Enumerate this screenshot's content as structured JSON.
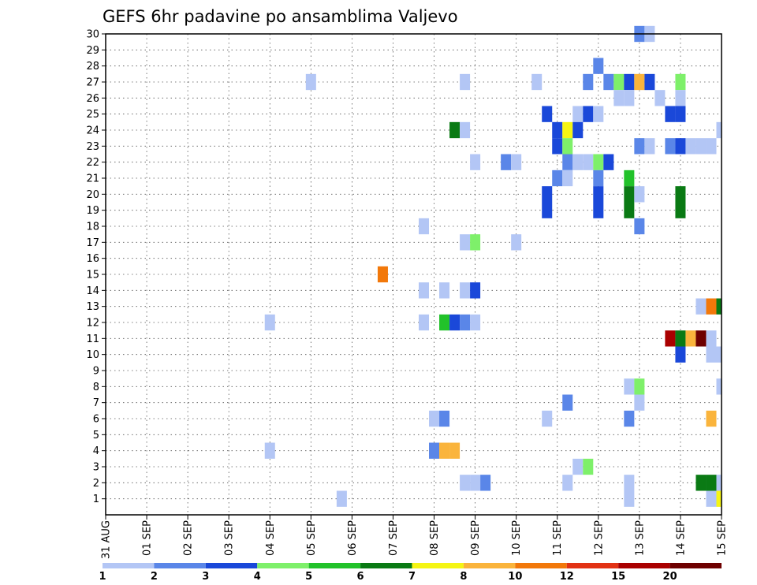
{
  "chart_data": {
    "type": "heatmap",
    "title": "GEFS 6hr padavine po ansamblima Valjevo",
    "x_tick_labels": [
      "31 AUG",
      "01 SEP",
      "02 SEP",
      "03 SEP",
      "04 SEP",
      "05 SEP",
      "06 SEP",
      "07 SEP",
      "08 SEP",
      "09 SEP",
      "10 SEP",
      "11 SEP",
      "12 SEP",
      "13 SEP",
      "14 SEP",
      "15 SEP"
    ],
    "y_tick_labels": [
      "1",
      "2",
      "3",
      "4",
      "5",
      "6",
      "7",
      "8",
      "9",
      "10",
      "11",
      "12",
      "13",
      "14",
      "15",
      "16",
      "17",
      "18",
      "19",
      "20",
      "21",
      "22",
      "23",
      "24",
      "25",
      "26",
      "27",
      "28",
      "29",
      "30"
    ],
    "x_range_days": [
      0,
      15
    ],
    "y_range": [
      0,
      30
    ],
    "grid": true,
    "colorbar": {
      "labels": [
        "1",
        "2",
        "3",
        "4",
        "5",
        "6",
        "7",
        "8",
        "10",
        "12",
        "15",
        "20"
      ],
      "colors": [
        "#b3c6f5",
        "#5a86e8",
        "#1a48d9",
        "#7ef06a",
        "#22c22a",
        "#0a7a14",
        "#f5f514",
        "#fab43c",
        "#f2780a",
        "#e23214",
        "#aa0000",
        "#6e0000"
      ]
    },
    "note_points": "Each cell: ensemble member (y), forecast time in days after 31 AUG 00z (x, 6-hour steps), precipitation in mm (v).",
    "points": [
      {
        "x": 13.0,
        "y": 30,
        "v": 2
      },
      {
        "x": 13.25,
        "y": 30,
        "v": 1
      },
      {
        "x": 12.0,
        "y": 28,
        "v": 2
      },
      {
        "x": 5.0,
        "y": 27,
        "v": 1
      },
      {
        "x": 8.75,
        "y": 27,
        "v": 1
      },
      {
        "x": 10.5,
        "y": 27,
        "v": 1
      },
      {
        "x": 11.75,
        "y": 27,
        "v": 2
      },
      {
        "x": 12.25,
        "y": 27,
        "v": 2
      },
      {
        "x": 12.5,
        "y": 27,
        "v": 4
      },
      {
        "x": 12.75,
        "y": 27,
        "v": 3
      },
      {
        "x": 13.0,
        "y": 27,
        "v": 8
      },
      {
        "x": 13.25,
        "y": 27,
        "v": 3
      },
      {
        "x": 14.0,
        "y": 27,
        "v": 4
      },
      {
        "x": 12.5,
        "y": 26,
        "v": 1
      },
      {
        "x": 12.75,
        "y": 26,
        "v": 1
      },
      {
        "x": 13.5,
        "y": 26,
        "v": 1
      },
      {
        "x": 14.0,
        "y": 26,
        "v": 1
      },
      {
        "x": 10.75,
        "y": 25,
        "v": 3
      },
      {
        "x": 11.5,
        "y": 25,
        "v": 1
      },
      {
        "x": 11.75,
        "y": 25,
        "v": 3
      },
      {
        "x": 12.0,
        "y": 25,
        "v": 1
      },
      {
        "x": 13.75,
        "y": 25,
        "v": 3
      },
      {
        "x": 14.0,
        "y": 25,
        "v": 3
      },
      {
        "x": 8.5,
        "y": 24,
        "v": 6
      },
      {
        "x": 8.75,
        "y": 24,
        "v": 1
      },
      {
        "x": 11.0,
        "y": 24,
        "v": 3
      },
      {
        "x": 11.25,
        "y": 24,
        "v": 7
      },
      {
        "x": 11.5,
        "y": 24,
        "v": 3
      },
      {
        "x": 15.0,
        "y": 24,
        "v": 1
      },
      {
        "x": 11.0,
        "y": 23,
        "v": 3
      },
      {
        "x": 11.25,
        "y": 23,
        "v": 4
      },
      {
        "x": 13.0,
        "y": 23,
        "v": 2
      },
      {
        "x": 13.25,
        "y": 23,
        "v": 1
      },
      {
        "x": 13.75,
        "y": 23,
        "v": 2
      },
      {
        "x": 14.0,
        "y": 23,
        "v": 3
      },
      {
        "x": 14.25,
        "y": 23,
        "v": 1
      },
      {
        "x": 14.5,
        "y": 23,
        "v": 1
      },
      {
        "x": 14.75,
        "y": 23,
        "v": 1
      },
      {
        "x": 9.0,
        "y": 22,
        "v": 1
      },
      {
        "x": 9.75,
        "y": 22,
        "v": 2
      },
      {
        "x": 10.0,
        "y": 22,
        "v": 1
      },
      {
        "x": 11.25,
        "y": 22,
        "v": 2
      },
      {
        "x": 11.5,
        "y": 22,
        "v": 1
      },
      {
        "x": 11.75,
        "y": 22,
        "v": 1
      },
      {
        "x": 12.0,
        "y": 22,
        "v": 4
      },
      {
        "x": 12.25,
        "y": 22,
        "v": 3
      },
      {
        "x": 11.0,
        "y": 21,
        "v": 2
      },
      {
        "x": 11.25,
        "y": 21,
        "v": 1
      },
      {
        "x": 12.0,
        "y": 21,
        "v": 2
      },
      {
        "x": 12.75,
        "y": 21,
        "v": 5
      },
      {
        "x": 10.75,
        "y": 20,
        "v": 3
      },
      {
        "x": 12.0,
        "y": 20,
        "v": 3
      },
      {
        "x": 12.75,
        "y": 20,
        "v": 6
      },
      {
        "x": 13.0,
        "y": 20,
        "v": 1
      },
      {
        "x": 14.0,
        "y": 20,
        "v": 6
      },
      {
        "x": 10.75,
        "y": 19,
        "v": 3
      },
      {
        "x": 12.0,
        "y": 19,
        "v": 3
      },
      {
        "x": 12.75,
        "y": 19,
        "v": 6
      },
      {
        "x": 14.0,
        "y": 19,
        "v": 6
      },
      {
        "x": 13.0,
        "y": 18,
        "v": 2
      },
      {
        "x": 7.75,
        "y": 18,
        "v": 1
      },
      {
        "x": 8.75,
        "y": 17,
        "v": 1
      },
      {
        "x": 9.0,
        "y": 17,
        "v": 4
      },
      {
        "x": 10.0,
        "y": 17,
        "v": 1
      },
      {
        "x": 6.75,
        "y": 15,
        "v": 10
      },
      {
        "x": 7.75,
        "y": 14,
        "v": 1
      },
      {
        "x": 8.25,
        "y": 14,
        "v": 1
      },
      {
        "x": 8.75,
        "y": 14,
        "v": 1
      },
      {
        "x": 9.0,
        "y": 14,
        "v": 3
      },
      {
        "x": 14.5,
        "y": 13,
        "v": 1
      },
      {
        "x": 14.75,
        "y": 13,
        "v": 10
      },
      {
        "x": 15.0,
        "y": 13,
        "v": 6
      },
      {
        "x": 4.0,
        "y": 12,
        "v": 1
      },
      {
        "x": 7.75,
        "y": 12,
        "v": 1
      },
      {
        "x": 8.25,
        "y": 12,
        "v": 5
      },
      {
        "x": 8.5,
        "y": 12,
        "v": 3
      },
      {
        "x": 8.75,
        "y": 12,
        "v": 2
      },
      {
        "x": 9.0,
        "y": 12,
        "v": 1
      },
      {
        "x": 13.75,
        "y": 11,
        "v": 15
      },
      {
        "x": 14.0,
        "y": 11,
        "v": 6
      },
      {
        "x": 14.25,
        "y": 11,
        "v": 8
      },
      {
        "x": 14.5,
        "y": 11,
        "v": 20
      },
      {
        "x": 14.75,
        "y": 11,
        "v": 1
      },
      {
        "x": 14.0,
        "y": 10,
        "v": 3
      },
      {
        "x": 14.75,
        "y": 10,
        "v": 1
      },
      {
        "x": 15.0,
        "y": 10,
        "v": 1
      },
      {
        "x": 12.75,
        "y": 8,
        "v": 1
      },
      {
        "x": 13.0,
        "y": 8,
        "v": 4
      },
      {
        "x": 15.0,
        "y": 8,
        "v": 1
      },
      {
        "x": 11.25,
        "y": 7,
        "v": 2
      },
      {
        "x": 13.0,
        "y": 7,
        "v": 1
      },
      {
        "x": 8.0,
        "y": 6,
        "v": 1
      },
      {
        "x": 8.25,
        "y": 6,
        "v": 2
      },
      {
        "x": 10.75,
        "y": 6,
        "v": 1
      },
      {
        "x": 12.75,
        "y": 6,
        "v": 2
      },
      {
        "x": 14.75,
        "y": 6,
        "v": 8
      },
      {
        "x": 4.0,
        "y": 4,
        "v": 1
      },
      {
        "x": 8.0,
        "y": 4,
        "v": 2
      },
      {
        "x": 8.25,
        "y": 4,
        "v": 8
      },
      {
        "x": 8.5,
        "y": 4,
        "v": 8
      },
      {
        "x": 11.5,
        "y": 3,
        "v": 1
      },
      {
        "x": 11.75,
        "y": 3,
        "v": 4
      },
      {
        "x": 8.75,
        "y": 2,
        "v": 1
      },
      {
        "x": 9.0,
        "y": 2,
        "v": 1
      },
      {
        "x": 9.25,
        "y": 2,
        "v": 2
      },
      {
        "x": 11.25,
        "y": 2,
        "v": 1
      },
      {
        "x": 12.75,
        "y": 2,
        "v": 1
      },
      {
        "x": 14.5,
        "y": 2,
        "v": 6
      },
      {
        "x": 14.75,
        "y": 2,
        "v": 6
      },
      {
        "x": 15.0,
        "y": 2,
        "v": 1
      },
      {
        "x": 5.75,
        "y": 1,
        "v": 1
      },
      {
        "x": 12.75,
        "y": 1,
        "v": 1
      },
      {
        "x": 14.75,
        "y": 1,
        "v": 1
      },
      {
        "x": 15.0,
        "y": 1,
        "v": 7
      }
    ]
  }
}
